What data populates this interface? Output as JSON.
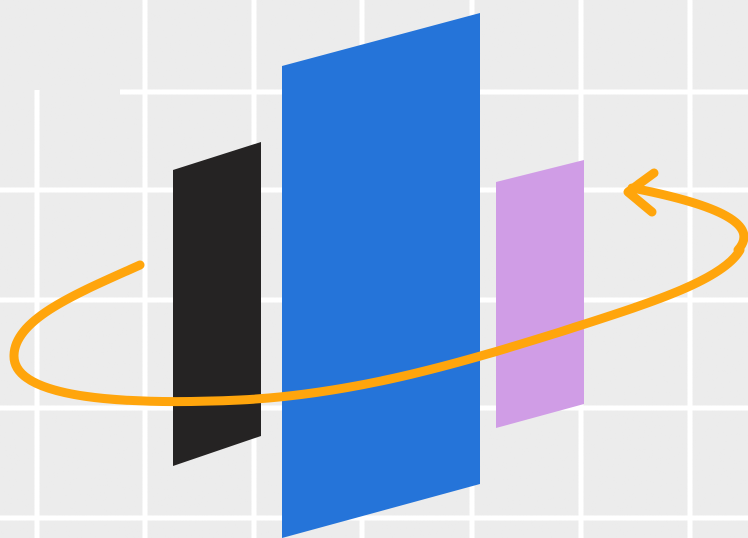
{
  "scene": {
    "description_icon": "rotating-panels-illustration",
    "colors": {
      "background": "#ececec",
      "speckle": "#d6d6d6",
      "grid_line": "#ffffff",
      "panel_black": "#252323",
      "panel_blue": "#2574d9",
      "panel_lilac": "#d09de6",
      "orbit_arrow": "#ffa50c"
    },
    "icons": {
      "orbit": "circular-arrow-icon",
      "panels": [
        "black-panel",
        "blue-panel",
        "lilac-panel"
      ]
    }
  }
}
